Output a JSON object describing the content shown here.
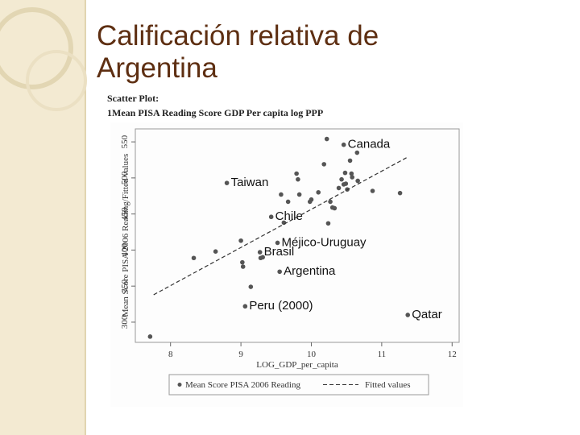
{
  "chart_data": {
    "type": "scatter",
    "title": "Calificación relativa de Argentina",
    "subtitle": [
      "Scatter Plot:",
      "1Mean PISA Reading Score GDP Per capita log PPP"
    ],
    "x_label": "LOG_GDP_per_capita",
    "y_label": "Mean Score PISA 2006 Reading/Fitted values",
    "xlim": [
      7.5,
      12.1
    ],
    "ylim": [
      272,
      568
    ],
    "xticks": [
      8,
      9,
      10,
      11,
      12
    ],
    "yticks": [
      300,
      350,
      400,
      450,
      500,
      550
    ],
    "series": [
      {
        "name": "Mean Score PISA 2006 Reading",
        "type": "scatter",
        "color": "#555555",
        "x": [
          7.71,
          8.33,
          8.64,
          8.8,
          9.0,
          9.02,
          9.03,
          9.14,
          9.06,
          9.27,
          9.28,
          9.31,
          9.43,
          9.52,
          9.55,
          9.57,
          9.61,
          9.67,
          9.79,
          9.81,
          9.83,
          9.98,
          10.0,
          10.1,
          10.18,
          10.22,
          10.24,
          10.27,
          10.3,
          10.33,
          10.39,
          10.43,
          10.46,
          10.48,
          10.49,
          10.51,
          10.55,
          10.57,
          10.58,
          10.46,
          10.65,
          10.66,
          10.87,
          11.26,
          11.37
        ],
        "values": [
          280,
          389,
          398,
          493,
          413,
          383,
          377,
          349,
          322,
          397,
          389,
          390,
          446,
          410,
          370,
          477,
          438,
          467,
          506,
          498,
          477,
          467,
          470,
          480,
          519,
          554,
          437,
          467,
          459,
          458,
          486,
          498,
          491,
          507,
          492,
          484,
          524,
          506,
          501,
          546,
          535,
          496,
          482,
          479,
          310
        ],
        "labels": [
          null,
          null,
          null,
          "Taiwan",
          null,
          null,
          null,
          null,
          "Peru (2000)",
          "Brasil",
          null,
          null,
          "Chile",
          "Méjico-Uruguay",
          "Argentina",
          null,
          null,
          null,
          null,
          null,
          null,
          null,
          null,
          null,
          null,
          null,
          null,
          null,
          null,
          null,
          null,
          null,
          null,
          null,
          null,
          null,
          null,
          null,
          null,
          "Canada",
          null,
          null,
          null,
          null,
          "Qatar"
        ]
      },
      {
        "name": "Fitted values",
        "type": "line",
        "color": "#333333",
        "style": "dashed",
        "x": [
          7.76,
          11.37
        ],
        "values": [
          338,
          529
        ]
      }
    ]
  }
}
